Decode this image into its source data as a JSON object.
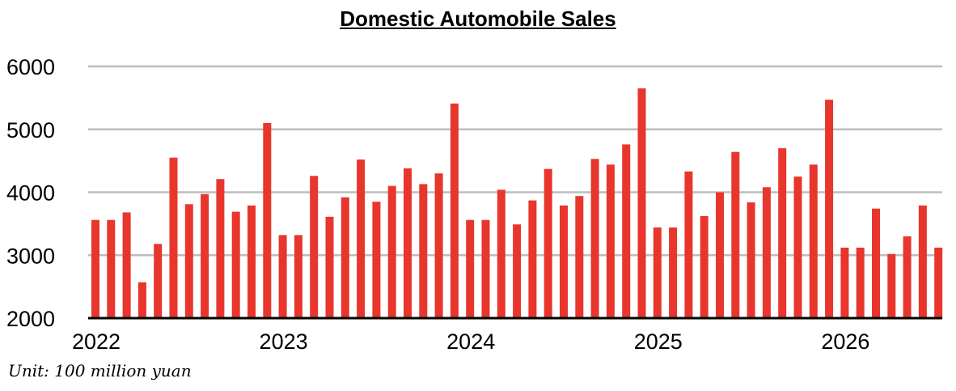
{
  "chart_data": {
    "type": "bar",
    "title": "Domestic Automobile Sales",
    "note": "Unit: 100 million yuan",
    "ylim": [
      2000,
      6000
    ],
    "yticks": [
      2000,
      3000,
      4000,
      5000,
      6000
    ],
    "xticks": [
      {
        "label": "2022",
        "index": 0
      },
      {
        "label": "2023",
        "index": 12
      },
      {
        "label": "2024",
        "index": 24
      },
      {
        "label": "2025",
        "index": 36
      },
      {
        "label": "2026",
        "index": 48
      }
    ],
    "grid": true,
    "bar_color": "#E8362C",
    "categories": [
      "2022-01",
      "2022-02",
      "2022-03",
      "2022-04",
      "2022-05",
      "2022-06",
      "2022-07",
      "2022-08",
      "2022-09",
      "2022-10",
      "2022-11",
      "2022-12",
      "2023-01",
      "2023-02",
      "2023-03",
      "2023-04",
      "2023-05",
      "2023-06",
      "2023-07",
      "2023-08",
      "2023-09",
      "2023-10",
      "2023-11",
      "2023-12",
      "2024-01",
      "2024-02",
      "2024-03",
      "2024-04",
      "2024-05",
      "2024-06",
      "2024-07",
      "2024-08",
      "2024-09",
      "2024-10",
      "2024-11",
      "2024-12",
      "2025-01",
      "2025-02",
      "2025-03",
      "2025-04",
      "2025-05",
      "2025-06",
      "2025-07",
      "2025-08",
      "2025-09",
      "2025-10",
      "2025-11",
      "2025-12",
      "2026-01",
      "2026-02",
      "2026-03",
      "2026-04",
      "2026-05",
      "2026-06",
      "2026-07"
    ],
    "values": [
      3560,
      3560,
      3680,
      2570,
      3180,
      4550,
      3810,
      3970,
      4210,
      3690,
      3790,
      5100,
      3320,
      3320,
      4260,
      3610,
      3920,
      4520,
      3850,
      4100,
      4380,
      4130,
      4300,
      5410,
      3560,
      3560,
      4040,
      3490,
      3870,
      4370,
      3790,
      3940,
      4530,
      4440,
      4760,
      5650,
      3440,
      3440,
      4330,
      3620,
      4000,
      4640,
      3840,
      4080,
      4700,
      4250,
      4440,
      5470,
      3120,
      3120,
      3740,
      3020,
      3300,
      3790,
      3120
    ]
  }
}
